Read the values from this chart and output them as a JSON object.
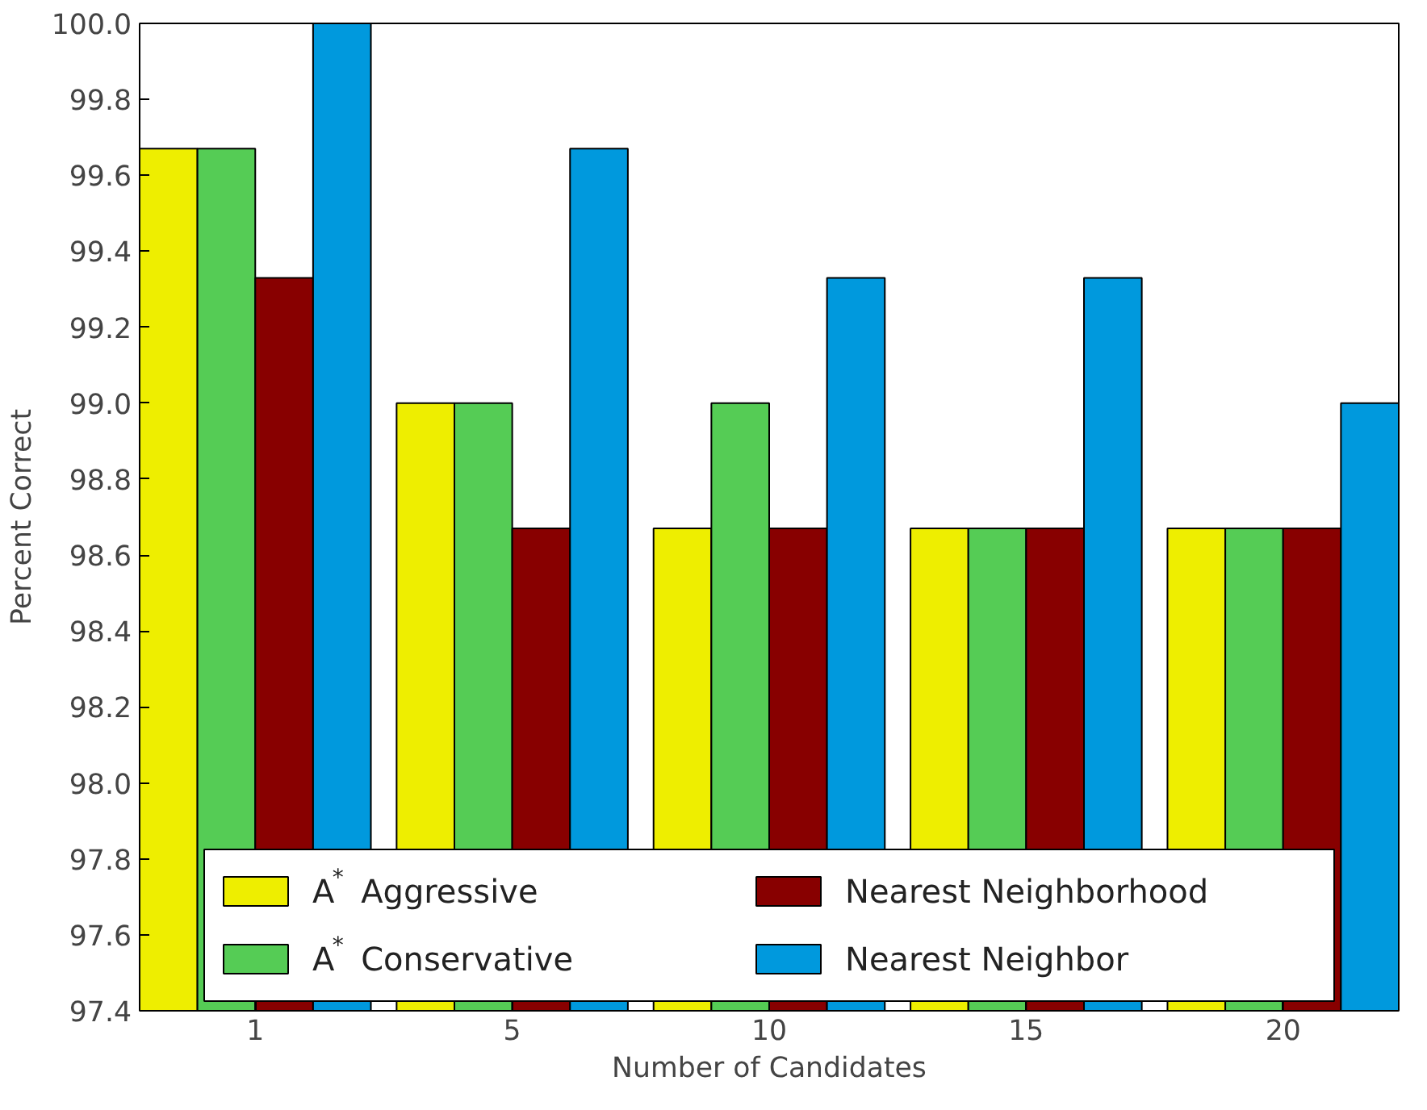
{
  "chart_data": {
    "type": "bar",
    "xlabel": "Number of Candidates",
    "ylabel": "Percent Correct",
    "categories": [
      "1",
      "5",
      "10",
      "15",
      "20"
    ],
    "series": [
      {
        "name": "A$^{*}$ Aggressive",
        "color": "#eeee00",
        "values": [
          99.67,
          99.0,
          98.67,
          98.67,
          98.67
        ]
      },
      {
        "name": "A$^{*}$ Conservative",
        "color": "#55cc55",
        "values": [
          99.67,
          99.0,
          99.0,
          98.67,
          98.67
        ]
      },
      {
        "name": "Nearest Neighborhood",
        "color": "#880000",
        "values": [
          99.33,
          98.67,
          98.67,
          98.67,
          98.67
        ]
      },
      {
        "name": "Nearest Neighbor",
        "color": "#0099dd",
        "values": [
          100.0,
          99.67,
          99.33,
          99.33,
          99.0
        ]
      }
    ],
    "ylim": [
      97.4,
      100.0
    ],
    "yticks": [
      {
        "value": 97.4,
        "label": "97.4"
      },
      {
        "value": 97.6,
        "label": "97.6"
      },
      {
        "value": 97.8,
        "label": "97.8"
      },
      {
        "value": 98.0,
        "label": "98.0"
      },
      {
        "value": 98.2,
        "label": "98.2"
      },
      {
        "value": 98.4,
        "label": "98.4"
      },
      {
        "value": 98.6,
        "label": "98.6"
      },
      {
        "value": 98.8,
        "label": "98.8"
      },
      {
        "value": 99.0,
        "label": "99.0"
      },
      {
        "value": 99.2,
        "label": "99.2"
      },
      {
        "value": 99.4,
        "label": "99.4"
      },
      {
        "value": 99.6,
        "label": "99.6"
      },
      {
        "value": 99.8,
        "label": "99.8"
      },
      {
        "value": 100.0,
        "label": "100.0"
      }
    ],
    "grid": false,
    "legend": "bottom"
  }
}
